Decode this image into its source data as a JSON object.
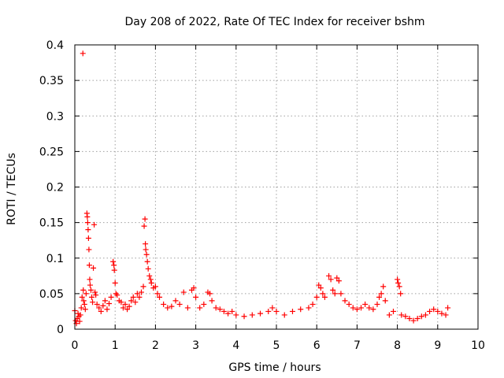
{
  "chart_data": {
    "type": "scatter",
    "title": "Day 208 of 2022, Rate Of TEC Index for receiver bshm",
    "xlabel": "GPS time / hours",
    "ylabel": "ROTI / TECUs",
    "xlim": [
      0,
      10
    ],
    "ylim": [
      0,
      0.4
    ],
    "xticks": [
      0,
      1,
      2,
      3,
      4,
      5,
      6,
      7,
      8,
      9,
      10
    ],
    "yticks": [
      0,
      0.05,
      0.1,
      0.15,
      0.2,
      0.25,
      0.3,
      0.35,
      0.4
    ],
    "xtick_labels": [
      "0",
      "1",
      "2",
      "3",
      "4",
      "5",
      "6",
      "7",
      "8",
      "9",
      "10"
    ],
    "ytick_labels": [
      "0",
      "0.05",
      "0.1",
      "0.15",
      "0.2",
      "0.25",
      "0.3",
      "0.35",
      "0.4"
    ],
    "grid": true,
    "legend": "none",
    "marker": "+",
    "color": "#ff0000",
    "series": [
      {
        "values": [
          [
            0.0,
            0.026
          ],
          [
            0.02,
            0.012
          ],
          [
            0.04,
            0.008
          ],
          [
            0.06,
            0.015
          ],
          [
            0.08,
            0.022
          ],
          [
            0.1,
            0.018
          ],
          [
            0.12,
            0.011
          ],
          [
            0.14,
            0.02
          ],
          [
            0.16,
            0.03
          ],
          [
            0.18,
            0.045
          ],
          [
            0.2,
            0.388
          ],
          [
            0.21,
            0.055
          ],
          [
            0.22,
            0.04
          ],
          [
            0.24,
            0.035
          ],
          [
            0.26,
            0.028
          ],
          [
            0.28,
            0.05
          ],
          [
            0.3,
            0.163
          ],
          [
            0.31,
            0.158
          ],
          [
            0.32,
            0.15
          ],
          [
            0.33,
            0.14
          ],
          [
            0.34,
            0.128
          ],
          [
            0.35,
            0.112
          ],
          [
            0.36,
            0.09
          ],
          [
            0.37,
            0.07
          ],
          [
            0.38,
            0.062
          ],
          [
            0.4,
            0.055
          ],
          [
            0.42,
            0.045
          ],
          [
            0.44,
            0.038
          ],
          [
            0.46,
            0.086
          ],
          [
            0.48,
            0.147
          ],
          [
            0.5,
            0.052
          ],
          [
            0.52,
            0.048
          ],
          [
            0.55,
            0.035
          ],
          [
            0.6,
            0.03
          ],
          [
            0.65,
            0.025
          ],
          [
            0.7,
            0.033
          ],
          [
            0.75,
            0.04
          ],
          [
            0.8,
            0.028
          ],
          [
            0.85,
            0.036
          ],
          [
            0.9,
            0.045
          ],
          [
            0.95,
            0.095
          ],
          [
            0.97,
            0.09
          ],
          [
            0.98,
            0.083
          ],
          [
            1.0,
            0.065
          ],
          [
            1.02,
            0.05
          ],
          [
            1.05,
            0.048
          ],
          [
            1.1,
            0.04
          ],
          [
            1.15,
            0.038
          ],
          [
            1.2,
            0.03
          ],
          [
            1.25,
            0.035
          ],
          [
            1.3,
            0.028
          ],
          [
            1.35,
            0.032
          ],
          [
            1.4,
            0.04
          ],
          [
            1.45,
            0.045
          ],
          [
            1.5,
            0.038
          ],
          [
            1.55,
            0.05
          ],
          [
            1.6,
            0.045
          ],
          [
            1.65,
            0.052
          ],
          [
            1.7,
            0.06
          ],
          [
            1.72,
            0.145
          ],
          [
            1.74,
            0.155
          ],
          [
            1.75,
            0.12
          ],
          [
            1.76,
            0.112
          ],
          [
            1.78,
            0.105
          ],
          [
            1.8,
            0.095
          ],
          [
            1.82,
            0.085
          ],
          [
            1.85,
            0.075
          ],
          [
            1.88,
            0.07
          ],
          [
            1.9,
            0.065
          ],
          [
            1.95,
            0.058
          ],
          [
            2.0,
            0.06
          ],
          [
            2.05,
            0.05
          ],
          [
            2.1,
            0.045
          ],
          [
            2.2,
            0.035
          ],
          [
            2.3,
            0.03
          ],
          [
            2.4,
            0.032
          ],
          [
            2.5,
            0.04
          ],
          [
            2.6,
            0.035
          ],
          [
            2.7,
            0.052
          ],
          [
            2.8,
            0.03
          ],
          [
            2.9,
            0.055
          ],
          [
            2.95,
            0.058
          ],
          [
            3.0,
            0.045
          ],
          [
            3.1,
            0.03
          ],
          [
            3.2,
            0.035
          ],
          [
            3.3,
            0.052
          ],
          [
            3.35,
            0.05
          ],
          [
            3.4,
            0.04
          ],
          [
            3.5,
            0.03
          ],
          [
            3.6,
            0.028
          ],
          [
            3.7,
            0.025
          ],
          [
            3.8,
            0.022
          ],
          [
            3.9,
            0.025
          ],
          [
            4.0,
            0.02
          ],
          [
            4.2,
            0.018
          ],
          [
            4.4,
            0.02
          ],
          [
            4.6,
            0.022
          ],
          [
            4.8,
            0.025
          ],
          [
            4.9,
            0.03
          ],
          [
            5.0,
            0.025
          ],
          [
            5.2,
            0.02
          ],
          [
            5.4,
            0.025
          ],
          [
            5.6,
            0.028
          ],
          [
            5.8,
            0.03
          ],
          [
            5.9,
            0.035
          ],
          [
            6.0,
            0.045
          ],
          [
            6.05,
            0.062
          ],
          [
            6.1,
            0.058
          ],
          [
            6.15,
            0.05
          ],
          [
            6.2,
            0.045
          ],
          [
            6.3,
            0.075
          ],
          [
            6.35,
            0.07
          ],
          [
            6.4,
            0.055
          ],
          [
            6.45,
            0.05
          ],
          [
            6.5,
            0.072
          ],
          [
            6.55,
            0.068
          ],
          [
            6.6,
            0.05
          ],
          [
            6.7,
            0.04
          ],
          [
            6.8,
            0.035
          ],
          [
            6.9,
            0.03
          ],
          [
            7.0,
            0.028
          ],
          [
            7.1,
            0.03
          ],
          [
            7.2,
            0.035
          ],
          [
            7.3,
            0.03
          ],
          [
            7.4,
            0.028
          ],
          [
            7.5,
            0.035
          ],
          [
            7.55,
            0.045
          ],
          [
            7.6,
            0.05
          ],
          [
            7.65,
            0.06
          ],
          [
            7.7,
            0.04
          ],
          [
            7.8,
            0.02
          ],
          [
            7.9,
            0.025
          ],
          [
            8.0,
            0.07
          ],
          [
            8.02,
            0.065
          ],
          [
            8.05,
            0.06
          ],
          [
            8.08,
            0.05
          ],
          [
            8.1,
            0.02
          ],
          [
            8.2,
            0.018
          ],
          [
            8.3,
            0.015
          ],
          [
            8.4,
            0.012
          ],
          [
            8.5,
            0.015
          ],
          [
            8.6,
            0.018
          ],
          [
            8.7,
            0.02
          ],
          [
            8.8,
            0.025
          ],
          [
            8.9,
            0.028
          ],
          [
            9.0,
            0.025
          ],
          [
            9.1,
            0.022
          ],
          [
            9.2,
            0.02
          ],
          [
            9.25,
            0.03
          ]
        ]
      }
    ]
  }
}
